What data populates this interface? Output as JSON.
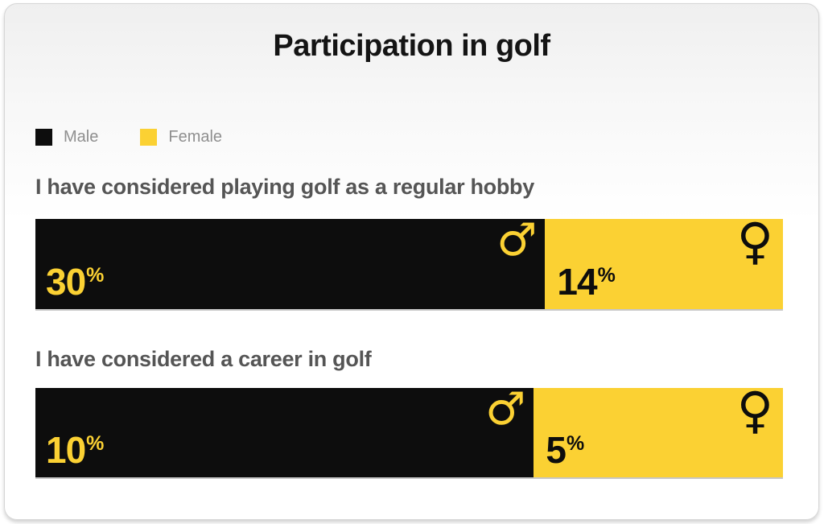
{
  "title": "Participation in golf",
  "icons": {
    "male_symbol": "♂",
    "female_symbol": "♀"
  },
  "chart_data": {
    "type": "bar",
    "orientation": "horizontal",
    "stacked": true,
    "title": "Participation in golf",
    "unit": "%",
    "categories": [
      "I have considered playing golf as a regular hobby",
      "I have considered a career in golf"
    ],
    "series": [
      {
        "name": "Male",
        "color": "#0d0d0d",
        "values": [
          30,
          10
        ]
      },
      {
        "name": "Female",
        "color": "#fbd133",
        "values": [
          14,
          5
        ]
      }
    ],
    "legend_position": "top-left",
    "grid": false,
    "axes_visible": false,
    "value_label_format": "{value}%"
  }
}
